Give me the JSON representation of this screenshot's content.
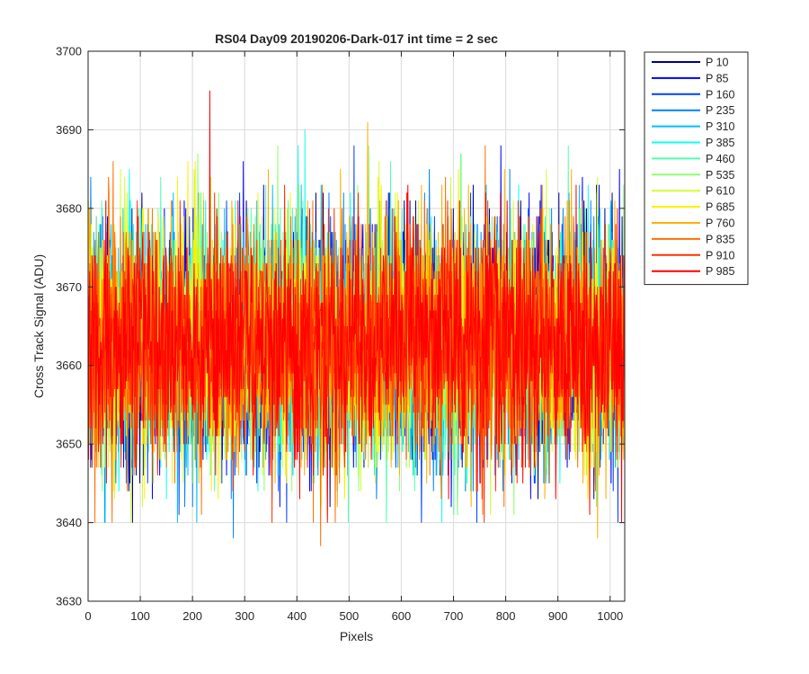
{
  "chart_data": {
    "type": "line",
    "title": "RS04 Day09 20190206-Dark-017 int time = 2 sec",
    "xlabel": "Pixels",
    "ylabel": "Cross Track Signal (ADU)",
    "xlim": [
      0,
      1028
    ],
    "ylim": [
      3630,
      3700
    ],
    "xticks": [
      0,
      100,
      200,
      300,
      400,
      500,
      600,
      700,
      800,
      900,
      1000
    ],
    "yticks": [
      3630,
      3640,
      3650,
      3660,
      3670,
      3680,
      3690,
      3700
    ],
    "grid": true,
    "legend_position": "outside-top-right",
    "n_points": 1028,
    "signal_mean": 3663,
    "signal_typical_range": [
      3648,
      3678
    ],
    "series": [
      {
        "name": "P 10",
        "color": "#00008F"
      },
      {
        "name": "P 85",
        "color": "#0000FF"
      },
      {
        "name": "P 160",
        "color": "#0040FF"
      },
      {
        "name": "P 235",
        "color": "#0080FF"
      },
      {
        "name": "P 310",
        "color": "#00BFFF"
      },
      {
        "name": "P 385",
        "color": "#10FFEF"
      },
      {
        "name": "P 460",
        "color": "#50FFAF"
      },
      {
        "name": "P 535",
        "color": "#8FFF70"
      },
      {
        "name": "P 610",
        "color": "#CFFF30"
      },
      {
        "name": "P 685",
        "color": "#FFEF00"
      },
      {
        "name": "P 760",
        "color": "#FFAF00"
      },
      {
        "name": "P 835",
        "color": "#FF7000"
      },
      {
        "name": "P 910",
        "color": "#FF3000"
      },
      {
        "name": "P 985",
        "color": "#FF0000"
      }
    ],
    "peaks": [
      {
        "series": "P 985",
        "x": 233,
        "y": 3695
      },
      {
        "series": "P 760",
        "x": 535,
        "y": 3691
      },
      {
        "series": "P 385",
        "x": 415,
        "y": 3690
      },
      {
        "series": "P 835",
        "x": 445,
        "y": 3637
      },
      {
        "series": "P 235",
        "x": 278,
        "y": 3638
      },
      {
        "series": "P 760",
        "x": 975,
        "y": 3638
      }
    ]
  }
}
